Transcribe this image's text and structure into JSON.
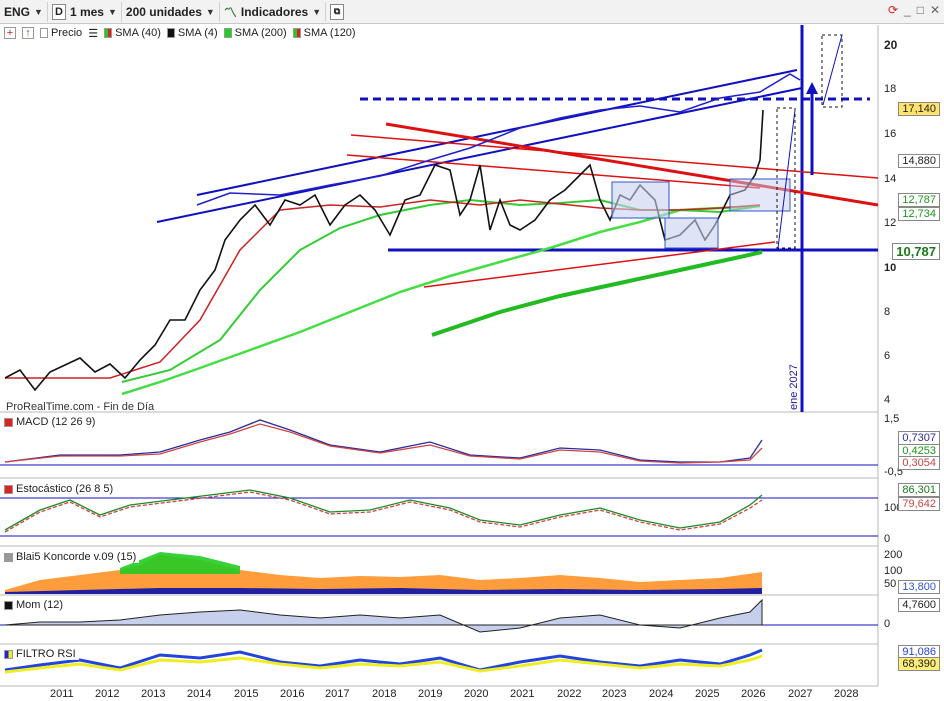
{
  "toolbar": {
    "ticker": "ENG",
    "period_box": "D",
    "timeframe": "1 mes",
    "units": "200 unidades",
    "indicators_label": "Indicadores"
  },
  "legend": {
    "price": "Precio",
    "sma40": "SMA (40)",
    "sma4": "SMA (4)",
    "sma200": "SMA (200)",
    "sma120": "SMA (120)"
  },
  "price_axis": {
    "ticks": [
      "20",
      "18",
      "16",
      "14",
      "12",
      "10",
      "8",
      "6",
      "4"
    ],
    "tags": {
      "last": "17,140",
      "high": "14,880",
      "sma_a": "12,787",
      "sma_b": "12,734",
      "support": "10,787"
    }
  },
  "annotation_vertical": "ene 2027",
  "watermark": "ProRealTime.com - Fin de Día",
  "panes": {
    "macd": {
      "title": "MACD (12 26 9)",
      "ticks": [
        "1,5",
        "-0,5"
      ],
      "tags": [
        "0,7307",
        "0,4253",
        "0,3054"
      ]
    },
    "stoch": {
      "title": "Estocástico (26 8 5)",
      "ticks": [
        "100",
        "0"
      ],
      "tags": [
        "86,301",
        "79,642"
      ]
    },
    "koncorde": {
      "title": "Blai5 Koncorde v.09 (15)",
      "ticks": [
        "200",
        "100",
        "50"
      ],
      "tags": [
        "13,800"
      ]
    },
    "mom": {
      "title": "Mom (12)",
      "ticks": [
        "0"
      ],
      "tags": [
        "4,7600"
      ]
    },
    "rsi": {
      "title": "FILTRO RSI",
      "ticks": [],
      "tags": [
        "91,086",
        "68,390"
      ]
    }
  },
  "years": [
    "2011",
    "2012",
    "2013",
    "2014",
    "2015",
    "2016",
    "2017",
    "2018",
    "2019",
    "2020",
    "2021",
    "2022",
    "2023",
    "2024",
    "2025",
    "2026",
    "2027",
    "2028"
  ],
  "colors": {
    "candle": "#111111",
    "sma_green": "#22cc22",
    "sma_darkgreen": "#33bb33",
    "channel_blue": "#1010c0",
    "resistance_red": "#dd1111",
    "target_box": "#3355cc"
  }
}
